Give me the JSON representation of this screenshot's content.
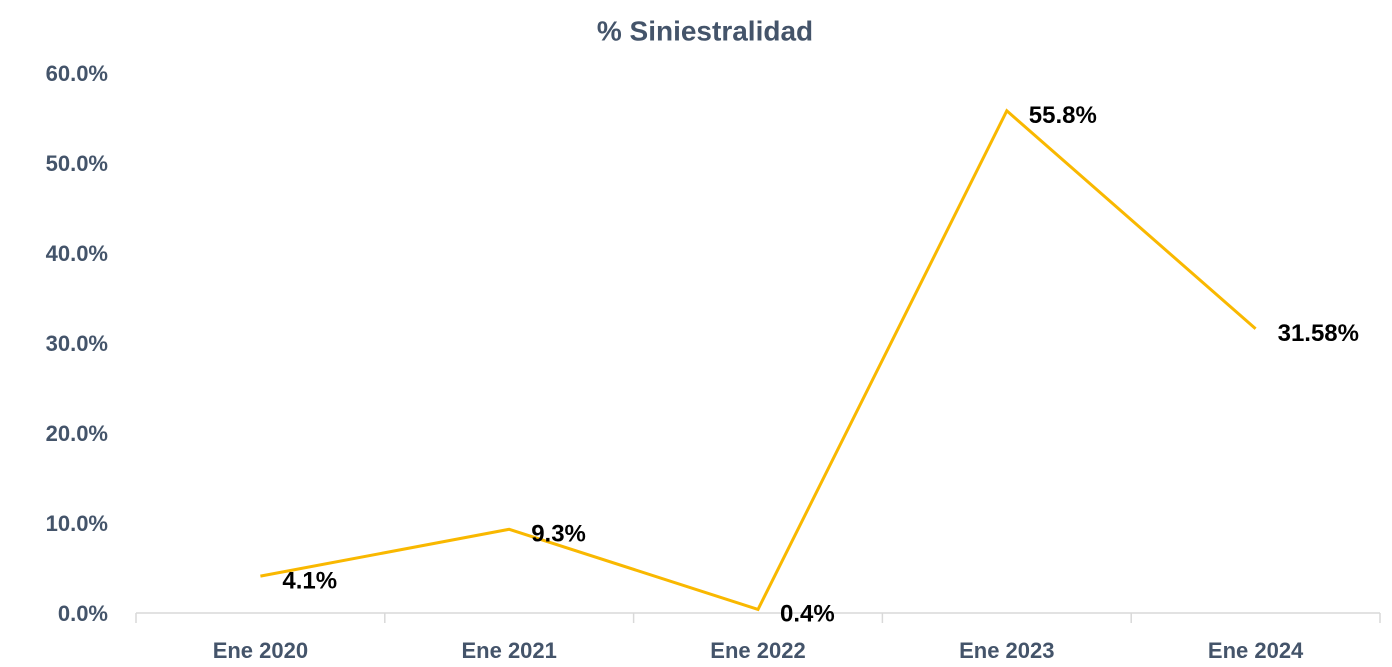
{
  "chart_data": {
    "type": "line",
    "title": "% Siniestralidad",
    "categories": [
      "Ene 2020",
      "Ene 2021",
      "Ene 2022",
      "Ene 2023",
      "Ene 2024"
    ],
    "series": [
      {
        "name": "% Siniestralidad",
        "color": "#f9b800",
        "values": [
          4.1,
          9.3,
          0.4,
          55.8,
          31.58
        ],
        "value_labels": [
          "4.1%",
          "9.3%",
          "0.4%",
          "55.8%",
          "31.58%"
        ]
      }
    ],
    "ylim": [
      0,
      60
    ],
    "yticks": [
      {
        "value": 0,
        "label": "0.0%"
      },
      {
        "value": 10,
        "label": "10.0%"
      },
      {
        "value": 20,
        "label": "20.0%"
      },
      {
        "value": 30,
        "label": "30.0%"
      },
      {
        "value": 40,
        "label": "40.0%"
      },
      {
        "value": 50,
        "label": "50.0%"
      },
      {
        "value": 60,
        "label": "60.0%"
      }
    ],
    "grid": false,
    "legend": false
  }
}
